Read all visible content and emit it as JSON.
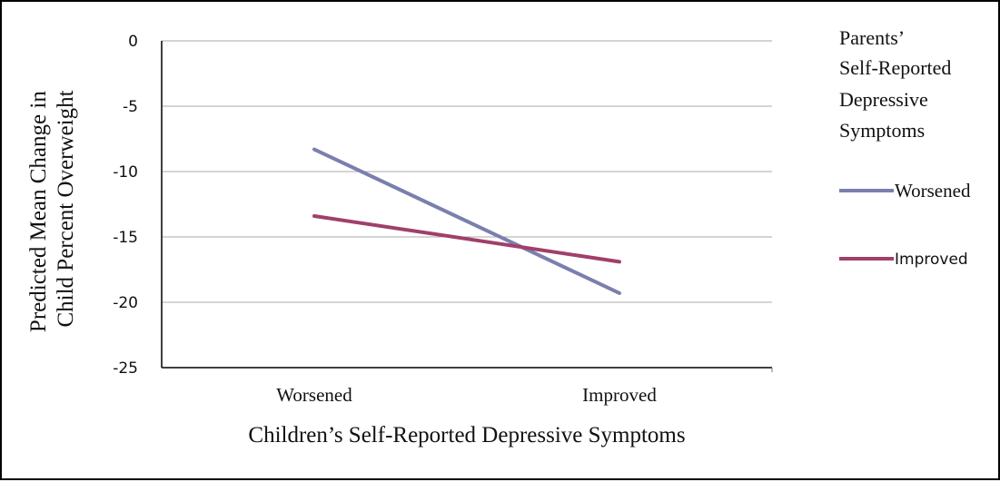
{
  "chart_data": {
    "type": "line",
    "xlabel": "Children’s Self-Reported Depressive Symptoms",
    "ylabel_lines": [
      "Predicted Mean Change in",
      "Child Percent Overweight"
    ],
    "categories": [
      "Worsened",
      "Improved"
    ],
    "ylim": [
      -25,
      0
    ],
    "yticks": [
      0,
      -5,
      -10,
      -15,
      -20,
      -25
    ],
    "grid": true,
    "legend": {
      "placement": "right",
      "title_lines": [
        "Parents’",
        "Self-Reported",
        "Depressive",
        "Symptoms"
      ]
    },
    "series": [
      {
        "name": "Worsened",
        "values": [
          -8.3,
          -19.3
        ],
        "color": "#7b7fae"
      },
      {
        "name": "Improved",
        "values": [
          -13.4,
          -16.9
        ],
        "color": "#a0406a"
      }
    ]
  }
}
